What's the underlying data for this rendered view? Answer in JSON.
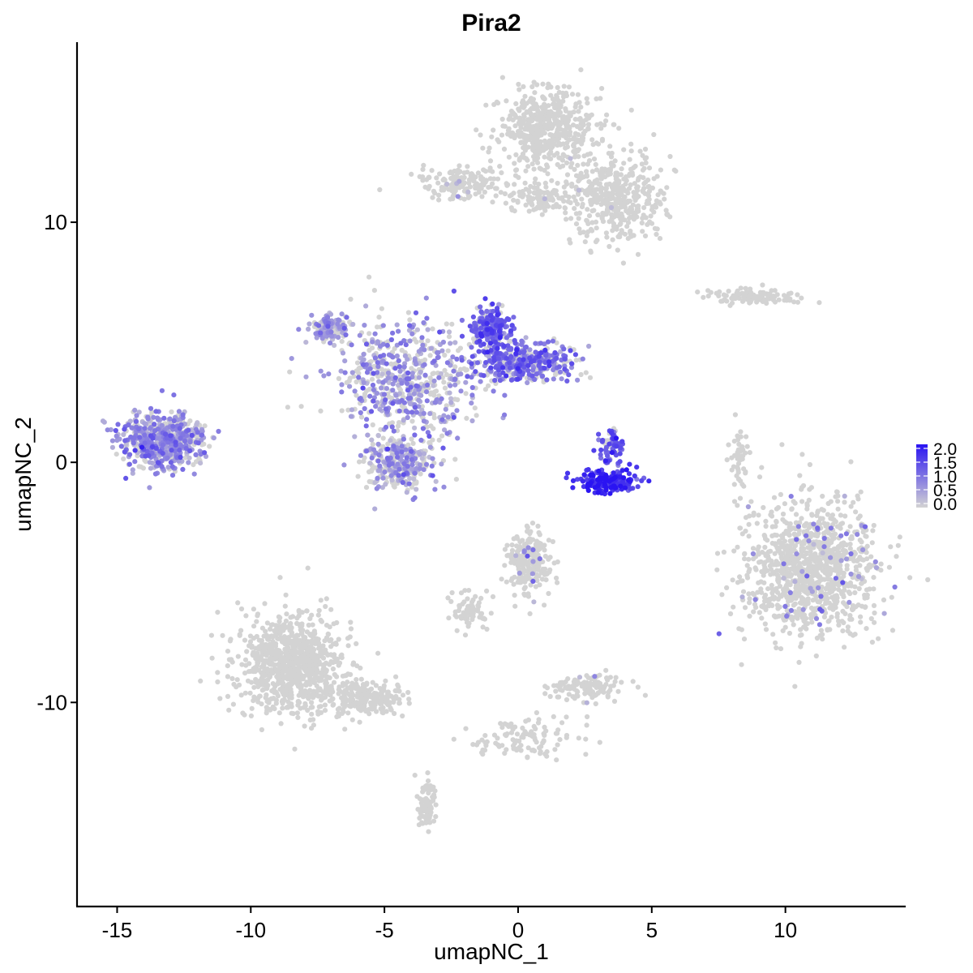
{
  "chart_data": {
    "type": "scatter",
    "title": "Pira2",
    "xlabel": "umapNC_1",
    "ylabel": "umapNC_2",
    "xlim": [
      -16.5,
      14.5
    ],
    "ylim": [
      -18.5,
      17.5
    ],
    "x_ticks": [
      -15,
      -10,
      -5,
      0,
      5,
      10
    ],
    "x_tick_labels": [
      "-15",
      "-10",
      "-5",
      "0",
      "5",
      "10"
    ],
    "y_ticks": [
      -10,
      0,
      10
    ],
    "y_tick_labels": [
      "-10",
      "0",
      "10"
    ],
    "grid": false,
    "legend_position": "right",
    "color_scale": {
      "low": "#d3d3d3",
      "high": "#2a14f2",
      "min": 0.0,
      "max": 2.0,
      "breaks": [
        0.0,
        0.5,
        1.0,
        1.5,
        2.0
      ],
      "labels": [
        "0.0",
        "0.5",
        "1.0",
        "1.5",
        "2.0"
      ]
    },
    "clusters": [
      {
        "cx": 1.1,
        "cy": 13.9,
        "sx": 1.4,
        "sy": 1.2,
        "n": 520,
        "expr": 0.0,
        "p": 0.006
      },
      {
        "cx": 3.6,
        "cy": 11.0,
        "sx": 1.3,
        "sy": 1.2,
        "n": 420,
        "expr": 0.0,
        "p": 0.008
      },
      {
        "cx": -2.0,
        "cy": 11.6,
        "sx": 1.1,
        "sy": 0.45,
        "n": 160,
        "expr": 0.0,
        "p": 0.02
      },
      {
        "cx": 0.9,
        "cy": 11.0,
        "sx": 0.8,
        "sy": 0.5,
        "n": 110,
        "expr": 0.0,
        "p": 0.0
      },
      {
        "cx": 8.9,
        "cy": 6.9,
        "sx": 1.1,
        "sy": 0.25,
        "n": 120,
        "expr": 0.0,
        "p": 0.0
      },
      {
        "cx": 10.9,
        "cy": -4.3,
        "sx": 1.7,
        "sy": 2.0,
        "n": 1100,
        "expr": 0.8,
        "p": 0.05
      },
      {
        "cx": -8.5,
        "cy": -8.4,
        "sx": 1.4,
        "sy": 1.5,
        "n": 900,
        "expr": 0.0,
        "p": 0.002
      },
      {
        "cx": -5.8,
        "cy": -9.8,
        "sx": 1.1,
        "sy": 0.5,
        "n": 230,
        "expr": 0.0,
        "p": 0.0
      },
      {
        "cx": -3.4,
        "cy": -14.3,
        "sx": 0.25,
        "sy": 0.8,
        "n": 90,
        "expr": 0.0,
        "p": 0.0
      },
      {
        "cx": 0.4,
        "cy": -4.1,
        "sx": 0.6,
        "sy": 0.9,
        "n": 220,
        "expr": 0.8,
        "p": 0.04
      },
      {
        "cx": -1.8,
        "cy": -6.2,
        "sx": 0.5,
        "sy": 0.6,
        "n": 70,
        "expr": 0.0,
        "p": 0.0
      },
      {
        "cx": 2.6,
        "cy": -9.4,
        "sx": 0.9,
        "sy": 0.4,
        "n": 120,
        "expr": 0.7,
        "p": 0.03
      },
      {
        "cx": 0.3,
        "cy": -11.5,
        "sx": 1.4,
        "sy": 0.6,
        "n": 110,
        "expr": 0.0,
        "p": 0.0
      },
      {
        "cx": 8.3,
        "cy": 0.2,
        "sx": 0.25,
        "sy": 0.9,
        "n": 50,
        "expr": 0.0,
        "p": 0.0
      },
      {
        "cx": -13.3,
        "cy": 0.9,
        "sx": 1.1,
        "sy": 0.8,
        "n": 620,
        "expr": 0.7,
        "p": 0.7
      },
      {
        "cx": -4.2,
        "cy": 3.5,
        "sx": 1.8,
        "sy": 1.8,
        "n": 600,
        "expr": 0.7,
        "p": 0.55
      },
      {
        "cx": -4.4,
        "cy": 0.0,
        "sx": 1.0,
        "sy": 0.8,
        "n": 300,
        "expr": 0.6,
        "p": 0.5
      },
      {
        "cx": -7.0,
        "cy": 5.6,
        "sx": 0.6,
        "sy": 0.4,
        "n": 120,
        "expr": 0.6,
        "p": 0.55
      },
      {
        "cx": -1.0,
        "cy": 5.6,
        "sx": 0.5,
        "sy": 0.6,
        "n": 200,
        "expr": 1.2,
        "p": 0.8
      },
      {
        "cx": 0.3,
        "cy": 4.2,
        "sx": 1.4,
        "sy": 0.6,
        "n": 420,
        "expr": 1.0,
        "p": 0.7
      },
      {
        "cx": 3.5,
        "cy": 0.6,
        "sx": 0.35,
        "sy": 0.6,
        "n": 70,
        "expr": 1.3,
        "p": 0.85
      },
      {
        "cx": 3.4,
        "cy": -0.8,
        "sx": 0.8,
        "sy": 0.3,
        "n": 190,
        "expr": 1.7,
        "p": 0.95
      }
    ]
  }
}
